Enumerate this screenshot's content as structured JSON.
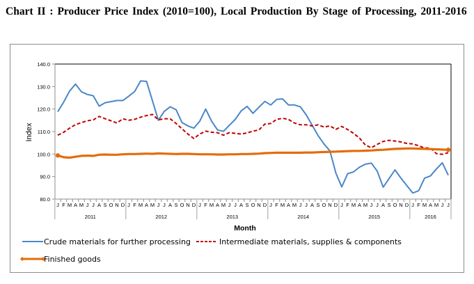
{
  "title": "Chart II : Producer Price Index (2010=100), Local Production By Stage of Processing, 2011-2016",
  "chart_data": {
    "type": "line",
    "title": "Chart II : Producer Price Index (2010=100), Local Production By Stage of Processing, 2011-2016",
    "xlabel": "Month",
    "ylabel": "Index",
    "ylim": [
      80,
      140
    ],
    "yticks": [
      "80.0",
      "90.0",
      "100.0",
      "110.0",
      "120.0",
      "130.0",
      "140.0"
    ],
    "years": [
      {
        "label": "2011",
        "months": 12
      },
      {
        "label": "2012",
        "months": 12
      },
      {
        "label": "2013",
        "months": 12
      },
      {
        "label": "2014",
        "months": 12
      },
      {
        "label": "2015",
        "months": 12
      },
      {
        "label": "2016",
        "months": 7
      }
    ],
    "month_labels": [
      "J",
      "F",
      "M",
      "A",
      "M",
      "J",
      "J",
      "A",
      "S",
      "O",
      "N",
      "D"
    ],
    "grid": false,
    "legend_position": "bottom",
    "series": [
      {
        "name": "Crude materials for further processing",
        "color": "#4a86c8",
        "style": "solid",
        "values": [
          118.8,
          123.1,
          128.0,
          131.1,
          127.7,
          126.5,
          125.9,
          121.3,
          122.8,
          123.3,
          123.8,
          123.8,
          125.7,
          127.8,
          132.5,
          132.3,
          123.7,
          115.0,
          119.0,
          121.0,
          119.7,
          114.0,
          112.5,
          111.5,
          114.6,
          120.0,
          114.6,
          110.7,
          110.1,
          112.8,
          115.4,
          119.2,
          121.2,
          118.1,
          120.8,
          123.4,
          121.8,
          124.3,
          124.5,
          121.8,
          121.8,
          121.0,
          117.4,
          112.8,
          108.2,
          104.5,
          101.4,
          91.6,
          85.4,
          91.3,
          92.1,
          94.2,
          95.5,
          96.0,
          92.4,
          85.3,
          89.1,
          93.0,
          89.3,
          86.0,
          82.7,
          83.7,
          89.3,
          90.3,
          93.4,
          96.1,
          90.6
        ]
      },
      {
        "name": "Intermediate materials, supplies & components",
        "color": "#c00000",
        "style": "dashed",
        "values": [
          108.4,
          109.7,
          111.5,
          113.1,
          114.0,
          114.8,
          115.2,
          116.7,
          115.7,
          114.8,
          113.8,
          115.7,
          115.0,
          115.4,
          116.4,
          117.1,
          117.6,
          115.2,
          115.7,
          115.7,
          113.6,
          111.2,
          108.9,
          106.9,
          108.9,
          110.2,
          109.7,
          109.5,
          108.4,
          109.5,
          109.2,
          108.9,
          109.4,
          110.2,
          110.7,
          113.3,
          113.6,
          115.4,
          115.9,
          115.4,
          113.8,
          113.0,
          113.0,
          112.5,
          113.0,
          112.0,
          112.5,
          111.0,
          112.3,
          110.9,
          109.2,
          107.1,
          104.0,
          102.8,
          104.3,
          105.6,
          106.1,
          105.8,
          105.4,
          104.7,
          104.5,
          103.7,
          102.7,
          102.7,
          100.2,
          99.9,
          100.6
        ]
      },
      {
        "name": "Finished goods",
        "color": "#e46c0a",
        "style": "solid-thick-markers",
        "values": [
          99.4,
          98.6,
          98.4,
          98.8,
          99.2,
          99.3,
          99.2,
          99.7,
          99.8,
          99.7,
          99.7,
          99.9,
          100.0,
          100.0,
          100.1,
          100.2,
          100.1,
          100.3,
          100.2,
          100.1,
          100.0,
          100.1,
          100.1,
          100.0,
          99.9,
          99.9,
          99.9,
          99.8,
          99.8,
          99.9,
          99.9,
          100.0,
          100.0,
          100.1,
          100.2,
          100.4,
          100.5,
          100.6,
          100.6,
          100.6,
          100.6,
          100.6,
          100.7,
          100.7,
          100.8,
          100.9,
          101.0,
          101.1,
          101.2,
          101.3,
          101.4,
          101.4,
          101.5,
          101.6,
          101.8,
          101.9,
          102.1,
          102.3,
          102.4,
          102.5,
          102.5,
          102.4,
          102.3,
          102.2,
          102.1,
          102.0,
          101.9
        ]
      }
    ]
  }
}
